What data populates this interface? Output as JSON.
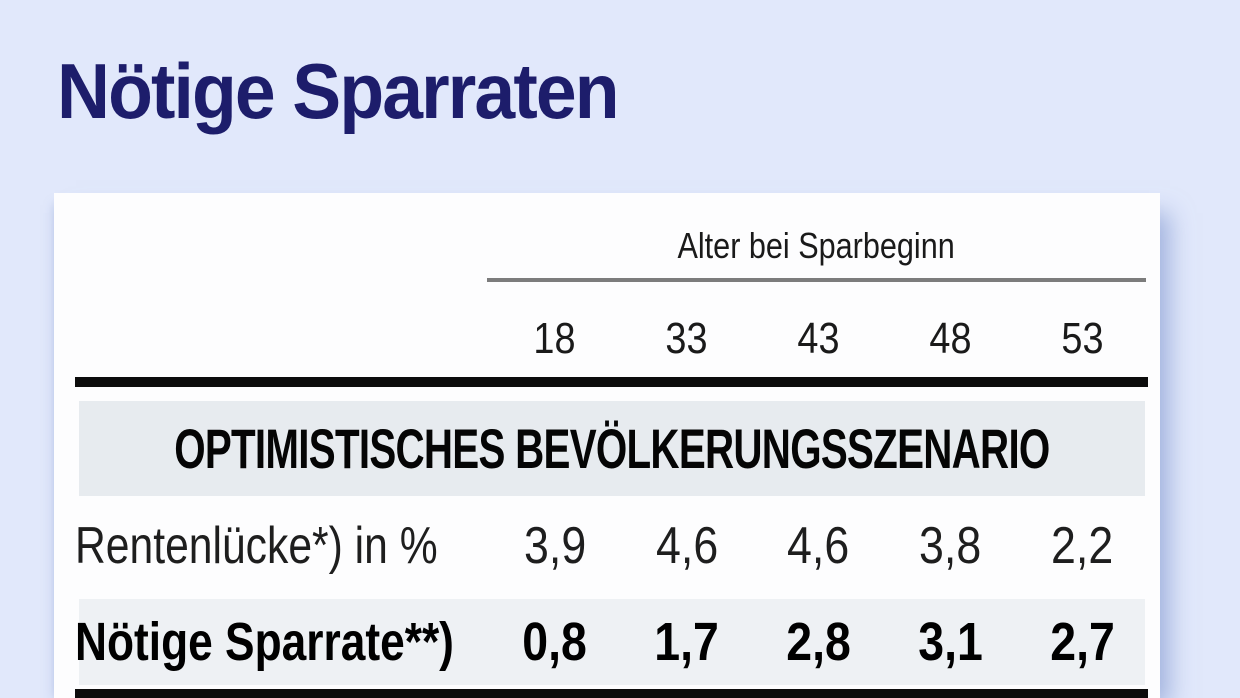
{
  "page": {
    "title": "Nötige Sparraten",
    "title_color": "#1d1d6b",
    "background_color": "#e1e8fb",
    "panel_color": "#fdfdfe"
  },
  "table": {
    "group_header": "Alter bei Sparbeginn",
    "columns": [
      "18",
      "33",
      "43",
      "48",
      "53"
    ],
    "section_header": "OPTIMISTISCHES BEVÖLKERUNGSSZENARIO",
    "rows": [
      {
        "label": "Rentenlücke*) in %",
        "values": [
          "3,9",
          "4,6",
          "4,6",
          "3,8",
          "2,2"
        ]
      },
      {
        "label": "Nötige Sparrate**)",
        "values": [
          "0,8",
          "1,7",
          "2,8",
          "3,1",
          "2,7"
        ]
      }
    ],
    "colors": {
      "section_band": "#e7ebef",
      "row2_band": "#eef1f4",
      "rule": "#0c0c0c",
      "group_underline": "#7c7c7c",
      "text": "#1a1a1a"
    }
  },
  "chart_data": {
    "type": "table",
    "title": "Nötige Sparraten",
    "column_group_label": "Alter bei Sparbeginn",
    "columns": [
      18,
      33,
      43,
      48,
      53
    ],
    "section": "OPTIMISTISCHES BEVÖLKERUNGSSZENARIO",
    "rows": [
      {
        "label": "Rentenlücke*) in %",
        "values": [
          3.9,
          4.6,
          4.6,
          3.8,
          2.2
        ]
      },
      {
        "label": "Nötige Sparrate**)",
        "values": [
          0.8,
          1.7,
          2.8,
          3.1,
          2.7
        ]
      }
    ],
    "value_unit": "% (Dezimaltrennzeichen: Komma)"
  }
}
